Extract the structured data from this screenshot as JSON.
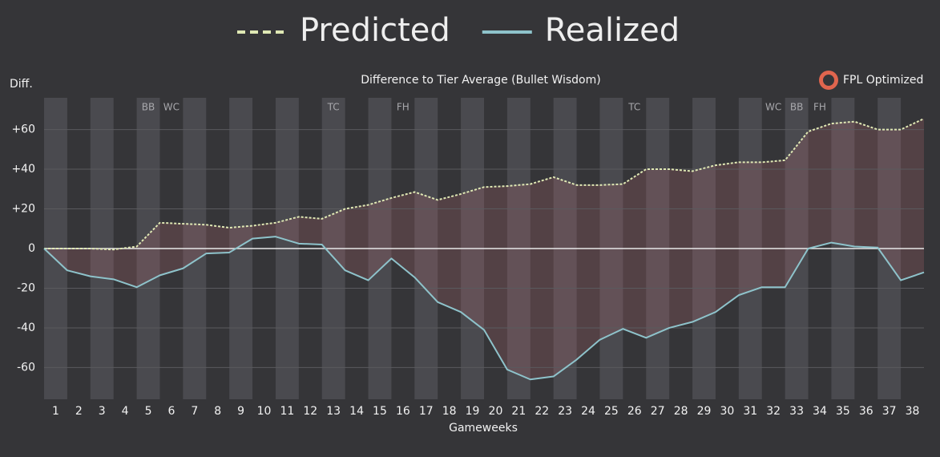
{
  "chart_data": {
    "type": "line",
    "title": "Difference to Tier Average (Bullet Wisdom)",
    "y_label": "Diff.",
    "x_label": "Gameweeks",
    "brand": "FPL Optimized",
    "x": [
      0,
      1,
      2,
      3,
      4,
      5,
      6,
      7,
      8,
      9,
      10,
      11,
      12,
      13,
      14,
      15,
      16,
      17,
      18,
      19,
      20,
      21,
      22,
      23,
      24,
      25,
      26,
      27,
      28,
      29,
      30,
      31,
      32,
      33,
      34,
      35,
      36,
      37,
      38
    ],
    "xlim": [
      0,
      38
    ],
    "xticks": [
      {
        "value": 0.5,
        "label": "1"
      },
      {
        "value": 1.5,
        "label": "2"
      },
      {
        "value": 2.5,
        "label": "3"
      },
      {
        "value": 3.5,
        "label": "4"
      },
      {
        "value": 4.5,
        "label": "5"
      },
      {
        "value": 5.5,
        "label": "6"
      },
      {
        "value": 6.5,
        "label": "7"
      },
      {
        "value": 7.5,
        "label": "8"
      },
      {
        "value": 8.5,
        "label": "9"
      },
      {
        "value": 9.5,
        "label": "10"
      },
      {
        "value": 10.5,
        "label": "11"
      },
      {
        "value": 11.5,
        "label": "12"
      },
      {
        "value": 12.5,
        "label": "13"
      },
      {
        "value": 13.5,
        "label": "14"
      },
      {
        "value": 14.5,
        "label": "15"
      },
      {
        "value": 15.5,
        "label": "16"
      },
      {
        "value": 16.5,
        "label": "17"
      },
      {
        "value": 17.5,
        "label": "18"
      },
      {
        "value": 18.5,
        "label": "19"
      },
      {
        "value": 19.5,
        "label": "20"
      },
      {
        "value": 20.5,
        "label": "21"
      },
      {
        "value": 21.5,
        "label": "22"
      },
      {
        "value": 22.5,
        "label": "23"
      },
      {
        "value": 23.5,
        "label": "24"
      },
      {
        "value": 24.5,
        "label": "25"
      },
      {
        "value": 25.5,
        "label": "26"
      },
      {
        "value": 26.5,
        "label": "27"
      },
      {
        "value": 27.5,
        "label": "28"
      },
      {
        "value": 28.5,
        "label": "29"
      },
      {
        "value": 29.5,
        "label": "30"
      },
      {
        "value": 30.5,
        "label": "31"
      },
      {
        "value": 31.5,
        "label": "32"
      },
      {
        "value": 32.5,
        "label": "33"
      },
      {
        "value": 33.5,
        "label": "34"
      },
      {
        "value": 34.5,
        "label": "35"
      },
      {
        "value": 35.5,
        "label": "36"
      },
      {
        "value": 36.5,
        "label": "37"
      },
      {
        "value": 37.5,
        "label": "38"
      }
    ],
    "ylim": [
      -76,
      76
    ],
    "yticks": [
      {
        "value": 60,
        "label": "+60"
      },
      {
        "value": 40,
        "label": "+40"
      },
      {
        "value": 20,
        "label": "+20"
      },
      0,
      -20,
      -40,
      -60
    ],
    "series": [
      {
        "name": "Predicted",
        "color": "#dfe8b4",
        "dashed": true,
        "values": [
          0,
          0,
          0,
          -0.5,
          1,
          13,
          12.5,
          12,
          10.5,
          11.5,
          13,
          16,
          15,
          20,
          22,
          25.5,
          28.5,
          24.5,
          27.5,
          31,
          31.5,
          32.5,
          36,
          32,
          32,
          32.5,
          40,
          40,
          39,
          42,
          43.5,
          43.5,
          44.5,
          59,
          63,
          64,
          60,
          60,
          65.5
        ]
      },
      {
        "name": "Realized",
        "color": "#8ec3cb",
        "dashed": false,
        "values": [
          0,
          -11,
          -14,
          -15.5,
          -19.5,
          -13.5,
          -10,
          -2.5,
          -2,
          5,
          6,
          2.5,
          2,
          -11,
          -16,
          -5,
          -14.5,
          -27,
          -32,
          -41,
          -61,
          -66,
          -64.5,
          -56,
          -46,
          -40.5,
          -45,
          -40,
          -37,
          -32,
          -23.5,
          -19.5,
          -19.5,
          0,
          3,
          1,
          0.5,
          -16,
          -12
        ]
      }
    ],
    "annotations": [
      {
        "x": 4.5,
        "label": "BB"
      },
      {
        "x": 5.5,
        "label": "WC"
      },
      {
        "x": 12.5,
        "label": "TC"
      },
      {
        "x": 15.5,
        "label": "FH"
      },
      {
        "x": 25.5,
        "label": "TC"
      },
      {
        "x": 31.5,
        "label": "WC"
      },
      {
        "x": 32.5,
        "label": "BB"
      },
      {
        "x": 33.5,
        "label": "FH"
      }
    ]
  }
}
